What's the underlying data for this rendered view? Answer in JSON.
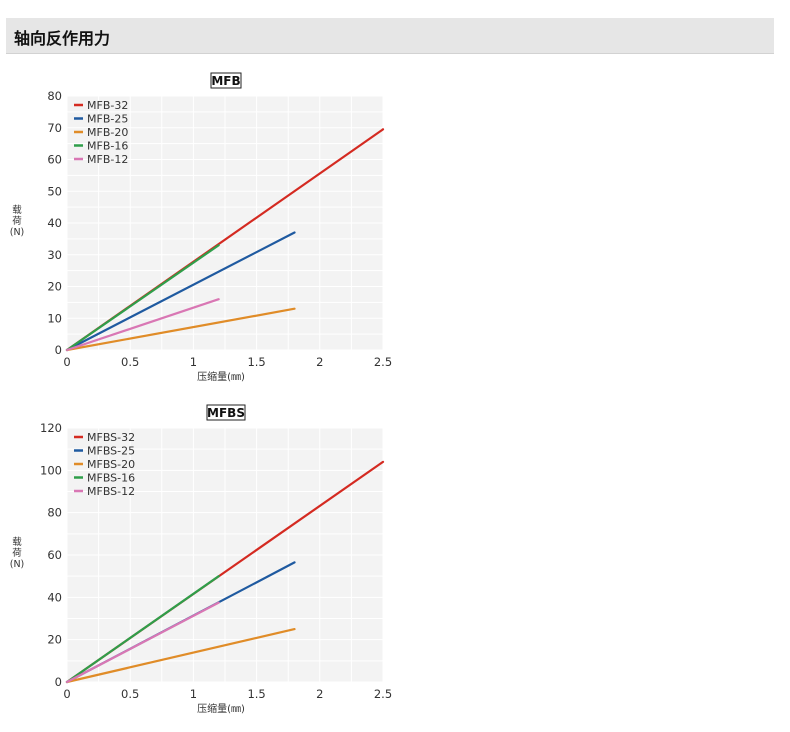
{
  "header": {
    "title": "轴向反作用力"
  },
  "colors": {
    "plot_bg": "#f3f3f3",
    "grid": "#ffffff",
    "size_32": "#d42a21",
    "size_25": "#1f5aa0",
    "size_20": "#e08c28",
    "size_16": "#2f9e4a",
    "size_12": "#d977b4"
  },
  "chart_data": [
    {
      "type": "line",
      "title": "MFB",
      "xlabel": "压缩量(㎜)",
      "ylabel": [
        "载",
        "荷",
        "(N)"
      ],
      "xlim": [
        0,
        2.5
      ],
      "ylim": [
        0,
        80
      ],
      "xticks": [
        0,
        0.5,
        1,
        1.5,
        2,
        2.5
      ],
      "xtick_labels": [
        "0",
        "0.5",
        "1",
        "1.5",
        "2",
        "2.5"
      ],
      "yticks": [
        0,
        10,
        20,
        30,
        40,
        50,
        60,
        70,
        80
      ],
      "ytick_labels": [
        "0",
        "10",
        "20",
        "30",
        "40",
        "50",
        "60",
        "70",
        "80"
      ],
      "grid": true,
      "legend_position": "top-left",
      "series": [
        {
          "name": "MFB-32",
          "color": "#d42a21",
          "x": [
            0,
            2.5
          ],
          "y": [
            0,
            69.5
          ]
        },
        {
          "name": "MFB-25",
          "color": "#1f5aa0",
          "x": [
            0,
            1.8
          ],
          "y": [
            0,
            37
          ]
        },
        {
          "name": "MFB-20",
          "color": "#e08c28",
          "x": [
            0,
            1.8
          ],
          "y": [
            0,
            13
          ]
        },
        {
          "name": "MFB-16",
          "color": "#2f9e4a",
          "x": [
            0,
            1.2
          ],
          "y": [
            0,
            33
          ]
        },
        {
          "name": "MFB-12",
          "color": "#d977b4",
          "x": [
            0,
            1.2
          ],
          "y": [
            0,
            16
          ]
        }
      ]
    },
    {
      "type": "line",
      "title": "MFBS",
      "xlabel": "压缩量(㎜)",
      "ylabel": [
        "载",
        "荷",
        "(N)"
      ],
      "xlim": [
        0,
        2.5
      ],
      "ylim": [
        0,
        120
      ],
      "xticks": [
        0,
        0.5,
        1,
        1.5,
        2,
        2.5
      ],
      "xtick_labels": [
        "0",
        "0.5",
        "1",
        "1.5",
        "2",
        "2.5"
      ],
      "yticks": [
        0,
        20,
        40,
        60,
        80,
        100,
        120
      ],
      "ytick_labels": [
        "0",
        "20",
        "40",
        "60",
        "80",
        "100",
        "120"
      ],
      "grid": true,
      "legend_position": "top-left",
      "series": [
        {
          "name": "MFBS-32",
          "color": "#d42a21",
          "x": [
            0,
            2.5
          ],
          "y": [
            0,
            104
          ]
        },
        {
          "name": "MFBS-25",
          "color": "#1f5aa0",
          "x": [
            0,
            1.8
          ],
          "y": [
            0,
            56.5
          ]
        },
        {
          "name": "MFBS-20",
          "color": "#e08c28",
          "x": [
            0,
            1.8
          ],
          "y": [
            0,
            25
          ]
        },
        {
          "name": "MFBS-16",
          "color": "#2f9e4a",
          "x": [
            0,
            1.2
          ],
          "y": [
            0,
            50
          ]
        },
        {
          "name": "MFBS-12",
          "color": "#d977b4",
          "x": [
            0,
            1.2
          ],
          "y": [
            0,
            37.5
          ]
        }
      ]
    }
  ]
}
